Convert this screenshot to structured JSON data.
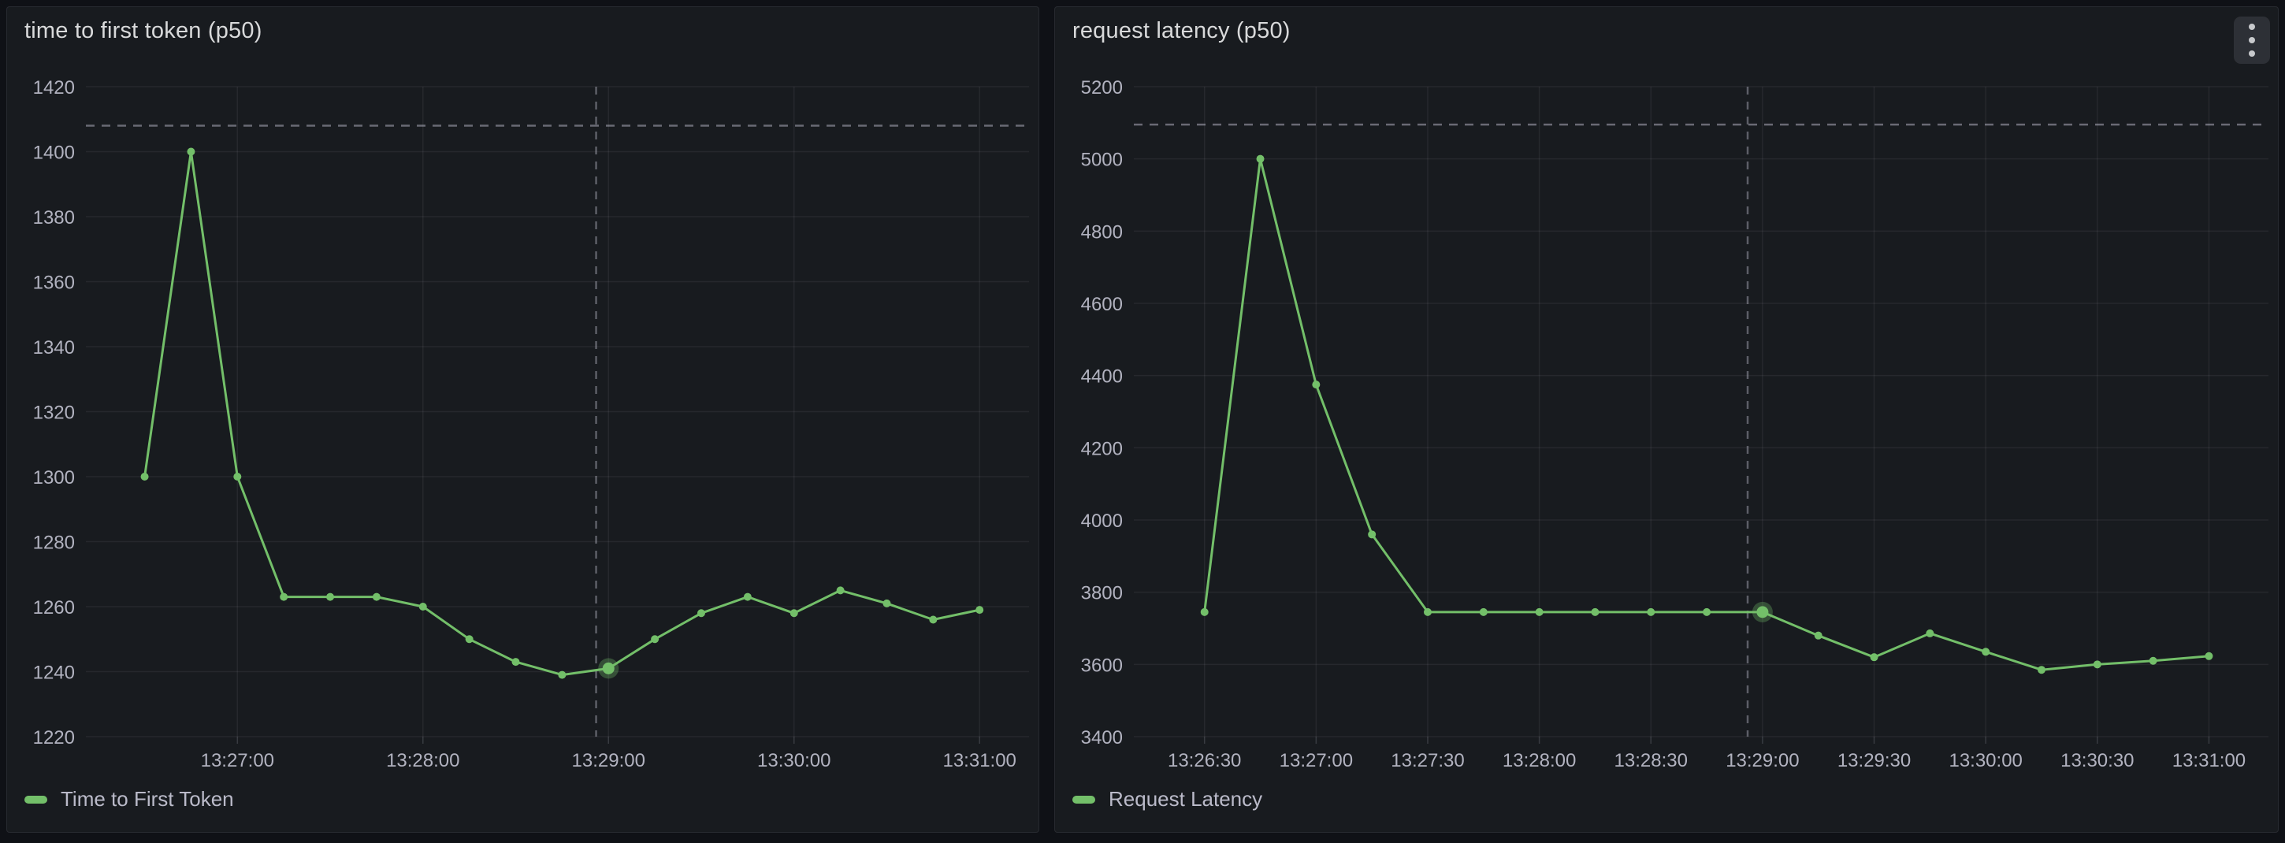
{
  "colors": {
    "canvas_background": "#0f1116",
    "panel_background": "#181b1f",
    "series_green": "#73BF69",
    "grid_line": "rgba(204,204,220,0.08)",
    "tick_text": "rgba(204,204,220,0.85)",
    "title_text": "#d8d9da",
    "dashed_line": "rgba(204,204,220,0.45)"
  },
  "panel_menu": {
    "icon": "kebab-vertical-icon"
  },
  "chart_data": [
    {
      "type": "line",
      "title": "time to first token (p50)",
      "legend": "Time to First Token",
      "line_color": "#73BF69",
      "grid": true,
      "legend_position": "bottom-left",
      "x": [
        "13:26:30",
        "13:26:45",
        "13:27:00",
        "13:27:15",
        "13:27:30",
        "13:27:45",
        "13:28:00",
        "13:28:15",
        "13:28:30",
        "13:28:45",
        "13:29:00",
        "13:29:15",
        "13:29:30",
        "13:29:45",
        "13:30:00",
        "13:30:15",
        "13:30:30",
        "13:30:45",
        "13:31:00"
      ],
      "values": [
        1300,
        1400,
        1300,
        1263,
        1263,
        1263,
        1260,
        1250,
        1243,
        1239,
        1241,
        1250,
        1258,
        1263,
        1258,
        1265,
        1261,
        1256,
        1259
      ],
      "ylim": [
        1220,
        1420
      ],
      "y_ticks": [
        1420,
        1400,
        1380,
        1360,
        1340,
        1320,
        1300,
        1280,
        1260,
        1240,
        1220
      ],
      "x_tick_labels": [
        "13:27:00",
        "13:28:00",
        "13:29:00",
        "13:30:00",
        "13:31:00"
      ],
      "time_range": [
        "13:26:11",
        "13:31:16"
      ],
      "threshold_value": 1408,
      "annotation_time": "13:28:56",
      "highlight_time": "13:29:00"
    },
    {
      "type": "line",
      "title": "request latency (p50)",
      "legend": "Request Latency",
      "line_color": "#73BF69",
      "grid": true,
      "legend_position": "bottom-left",
      "x": [
        "13:26:30",
        "13:26:45",
        "13:27:00",
        "13:27:15",
        "13:27:30",
        "13:27:45",
        "13:28:00",
        "13:28:15",
        "13:28:30",
        "13:28:45",
        "13:29:00",
        "13:29:15",
        "13:29:30",
        "13:29:45",
        "13:30:00",
        "13:30:15",
        "13:30:30",
        "13:30:45",
        "13:31:00"
      ],
      "values": [
        3745,
        5000,
        4375,
        3960,
        3745,
        3745,
        3745,
        3745,
        3745,
        3745,
        3745,
        3680,
        3620,
        3686,
        3635,
        3585,
        3600,
        3610,
        3623
      ],
      "ylim": [
        3400,
        5200
      ],
      "y_ticks": [
        5200,
        5000,
        4800,
        4600,
        4400,
        4200,
        4000,
        3800,
        3600,
        3400
      ],
      "x_tick_labels": [
        "13:26:30",
        "13:27:00",
        "13:27:30",
        "13:28:00",
        "13:28:30",
        "13:29:00",
        "13:29:30",
        "13:30:00",
        "13:30:30",
        "13:31:00"
      ],
      "time_range": [
        "13:26:11",
        "13:31:16"
      ],
      "threshold_value": 5095,
      "annotation_time": "13:28:56",
      "highlight_time": "13:29:00"
    }
  ]
}
